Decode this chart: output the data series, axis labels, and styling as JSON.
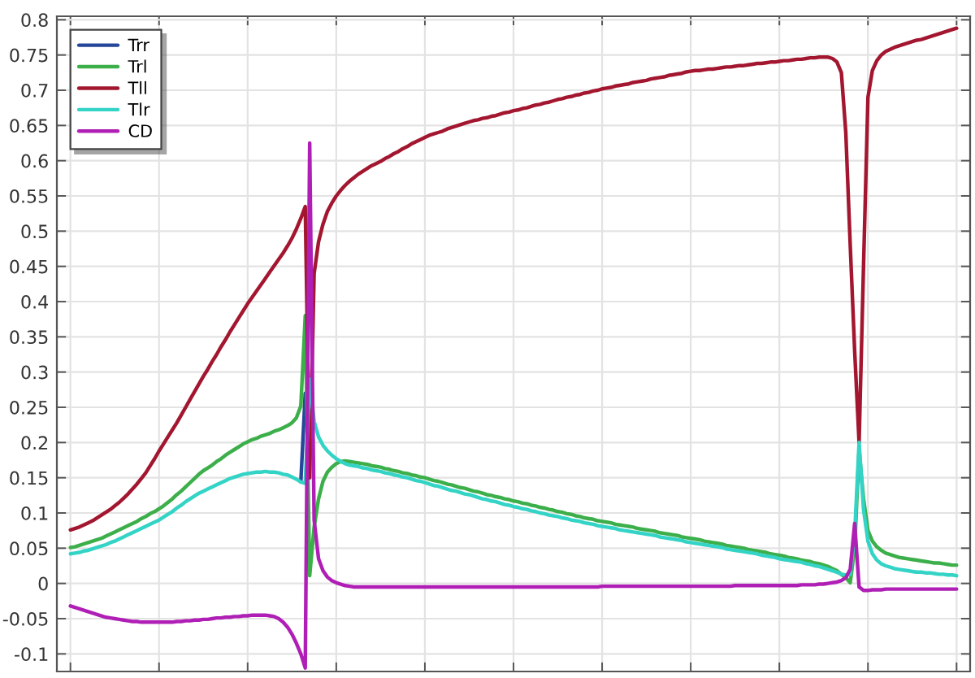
{
  "chart_data": {
    "type": "line",
    "categories": [
      null,
      null,
      null,
      null,
      null,
      null,
      null,
      null,
      null,
      null,
      null,
      null,
      null,
      null,
      null,
      null,
      null,
      null,
      null,
      null,
      null,
      null,
      null,
      null,
      null,
      null,
      null,
      null,
      null,
      null,
      null,
      null,
      null,
      null,
      null,
      null,
      null,
      null,
      null,
      null,
      null,
      null,
      null,
      null,
      null,
      null,
      null,
      null,
      null,
      null,
      null,
      null,
      null,
      null,
      null,
      null,
      null,
      null,
      null,
      null,
      null,
      null,
      null,
      null,
      null,
      null,
      null,
      null,
      null,
      null,
      null,
      null,
      null,
      null,
      null,
      null,
      null,
      null,
      null,
      null,
      null,
      null,
      null,
      null,
      null,
      null,
      null,
      null,
      null,
      null,
      null,
      null,
      null,
      null,
      null,
      null,
      null,
      null,
      null,
      null,
      null,
      null,
      null,
      null,
      null,
      null,
      null,
      null,
      null,
      null,
      null,
      null,
      null,
      null,
      null,
      null,
      null,
      null,
      null,
      null,
      null,
      null,
      null,
      null,
      null,
      null,
      null,
      null,
      null,
      null,
      null,
      null,
      null,
      null,
      null,
      null,
      null,
      null,
      null,
      null,
      null,
      null,
      null,
      null,
      null,
      null,
      null,
      null,
      null,
      null,
      null,
      null,
      null,
      null,
      null,
      null,
      null,
      null,
      null,
      null,
      null,
      null,
      null,
      null,
      null,
      null,
      null,
      null,
      null,
      null,
      null,
      null,
      null,
      null,
      null,
      null,
      null,
      null,
      null,
      null,
      null,
      null,
      null,
      null,
      null,
      null,
      null,
      null,
      null,
      null,
      null,
      null,
      null,
      null,
      null,
      null,
      null,
      null,
      null,
      null,
      null
    ],
    "series": [
      {
        "name": "Trr",
        "color": "#24479a",
        "values": [
          null,
          null,
          null,
          null,
          null,
          null,
          null,
          null,
          null,
          null,
          null,
          null,
          null,
          null,
          null,
          null,
          null,
          null,
          null,
          null,
          null,
          null,
          null,
          null,
          null,
          null,
          null,
          null,
          null,
          null,
          null,
          null,
          null,
          null,
          null,
          null,
          null,
          null,
          null,
          null,
          null,
          null,
          null,
          null,
          null,
          null,
          null,
          null,
          null,
          null,
          null,
          null,
          0.144,
          0.27,
          null,
          null,
          null,
          null,
          null,
          null,
          null,
          null,
          null,
          null,
          null,
          null,
          null,
          null,
          null,
          null,
          null,
          null,
          null,
          null,
          null,
          null,
          null,
          null,
          null,
          null,
          null,
          null,
          null,
          null,
          null,
          null,
          null,
          null,
          null,
          null,
          null,
          null,
          null,
          null,
          null,
          null,
          null,
          null,
          null,
          null,
          null,
          null,
          null,
          null,
          null,
          null,
          null,
          null,
          null,
          null,
          null,
          null,
          null,
          null,
          null,
          null,
          null,
          null,
          null,
          null,
          null,
          null,
          null,
          null,
          null,
          null,
          null,
          null,
          null,
          null,
          null,
          null,
          null,
          null,
          null,
          null,
          null,
          null,
          null,
          null,
          null,
          null,
          null,
          null,
          null,
          null,
          null,
          null,
          null,
          null,
          null,
          null,
          null,
          null,
          null,
          null,
          null,
          null,
          null,
          null,
          null,
          null,
          null,
          null,
          null,
          null,
          null,
          null,
          null,
          null,
          null,
          null,
          null,
          null,
          null,
          null,
          null,
          null,
          null,
          null,
          null,
          null,
          null,
          null,
          null,
          null,
          null,
          null,
          null,
          null,
          null,
          null,
          null,
          null,
          null,
          null,
          null,
          null,
          null,
          null,
          null
        ]
      },
      {
        "name": "Trl",
        "color": "#3caf4a",
        "values": [
          0.051,
          0.052,
          0.054,
          0.056,
          0.058,
          0.06,
          0.062,
          0.064,
          0.067,
          0.07,
          0.073,
          0.076,
          0.079,
          0.082,
          0.085,
          0.088,
          0.092,
          0.095,
          0.099,
          0.102,
          0.106,
          0.11,
          0.115,
          0.12,
          0.126,
          0.131,
          0.137,
          0.143,
          0.149,
          0.155,
          0.16,
          0.164,
          0.168,
          0.173,
          0.177,
          0.182,
          0.186,
          0.19,
          0.194,
          0.198,
          0.201,
          0.204,
          0.206,
          0.209,
          0.211,
          0.213,
          0.216,
          0.218,
          0.221,
          0.224,
          0.228,
          0.235,
          0.252,
          0.38,
          0.011,
          0.08,
          0.12,
          0.145,
          0.158,
          0.165,
          0.17,
          0.173,
          0.174,
          0.173,
          0.172,
          0.171,
          0.17,
          0.169,
          0.167,
          0.166,
          0.165,
          0.163,
          0.162,
          0.16,
          0.159,
          0.157,
          0.156,
          0.154,
          0.153,
          0.151,
          0.15,
          0.148,
          0.146,
          0.145,
          0.143,
          0.141,
          0.14,
          0.138,
          0.136,
          0.135,
          0.133,
          0.131,
          0.13,
          0.128,
          0.126,
          0.125,
          0.123,
          0.122,
          0.12,
          0.119,
          0.117,
          0.116,
          0.114,
          0.113,
          0.111,
          0.11,
          0.108,
          0.107,
          0.105,
          0.104,
          0.102,
          0.101,
          0.099,
          0.098,
          0.096,
          0.095,
          0.093,
          0.092,
          0.091,
          0.089,
          0.088,
          0.087,
          0.086,
          0.084,
          0.083,
          0.082,
          0.081,
          0.08,
          0.078,
          0.077,
          0.076,
          0.075,
          0.074,
          0.072,
          0.071,
          0.07,
          0.069,
          0.068,
          0.066,
          0.065,
          0.064,
          0.063,
          0.062,
          0.06,
          0.059,
          0.058,
          0.057,
          0.056,
          0.054,
          0.053,
          0.052,
          0.051,
          0.05,
          0.048,
          0.047,
          0.046,
          0.045,
          0.044,
          0.042,
          0.041,
          0.04,
          0.039,
          0.037,
          0.036,
          0.035,
          0.033,
          0.032,
          0.031,
          0.029,
          0.028,
          0.026,
          0.024,
          0.021,
          0.018,
          0.013,
          0.008,
          0.001,
          0.05,
          0.19,
          0.12,
          0.075,
          0.06,
          0.052,
          0.047,
          0.043,
          0.041,
          0.039,
          0.037,
          0.036,
          0.035,
          0.034,
          0.033,
          0.032,
          0.031,
          0.03,
          0.029,
          0.029,
          0.028,
          0.027,
          0.026,
          0.026
        ]
      },
      {
        "name": "Tll",
        "color": "#a3162f",
        "values": [
          0.076,
          0.078,
          0.08,
          0.083,
          0.086,
          0.089,
          0.093,
          0.097,
          0.101,
          0.105,
          0.11,
          0.115,
          0.121,
          0.127,
          0.134,
          0.141,
          0.149,
          0.157,
          0.167,
          0.177,
          0.188,
          0.198,
          0.208,
          0.218,
          0.228,
          0.239,
          0.25,
          0.261,
          0.272,
          0.283,
          0.294,
          0.304,
          0.315,
          0.325,
          0.336,
          0.346,
          0.357,
          0.367,
          0.377,
          0.387,
          0.397,
          0.406,
          0.415,
          0.424,
          0.433,
          0.442,
          0.451,
          0.46,
          0.469,
          0.479,
          0.49,
          0.503,
          0.518,
          0.535,
          0.15,
          0.44,
          0.485,
          0.51,
          0.528,
          0.54,
          0.55,
          0.558,
          0.565,
          0.571,
          0.576,
          0.581,
          0.585,
          0.589,
          0.593,
          0.596,
          0.599,
          0.603,
          0.606,
          0.61,
          0.613,
          0.617,
          0.62,
          0.624,
          0.627,
          0.63,
          0.633,
          0.636,
          0.638,
          0.64,
          0.642,
          0.645,
          0.647,
          0.649,
          0.651,
          0.653,
          0.655,
          0.657,
          0.658,
          0.66,
          0.661,
          0.663,
          0.664,
          0.666,
          0.668,
          0.669,
          0.671,
          0.672,
          0.674,
          0.675,
          0.677,
          0.679,
          0.68,
          0.682,
          0.683,
          0.685,
          0.687,
          0.688,
          0.69,
          0.691,
          0.693,
          0.694,
          0.696,
          0.697,
          0.699,
          0.7,
          0.702,
          0.703,
          0.704,
          0.706,
          0.707,
          0.708,
          0.709,
          0.711,
          0.712,
          0.713,
          0.714,
          0.716,
          0.717,
          0.718,
          0.719,
          0.721,
          0.722,
          0.723,
          0.724,
          0.726,
          0.727,
          0.728,
          0.728,
          0.729,
          0.73,
          0.73,
          0.731,
          0.732,
          0.733,
          0.733,
          0.734,
          0.735,
          0.735,
          0.736,
          0.737,
          0.738,
          0.738,
          0.739,
          0.74,
          0.74,
          0.741,
          0.742,
          0.742,
          0.743,
          0.744,
          0.744,
          0.745,
          0.746,
          0.746,
          0.747,
          0.747,
          0.747,
          0.745,
          0.74,
          0.725,
          0.64,
          0.48,
          0.33,
          0.2,
          0.45,
          0.69,
          0.728,
          0.742,
          0.75,
          0.755,
          0.758,
          0.761,
          0.763,
          0.765,
          0.767,
          0.769,
          0.771,
          0.772,
          0.774,
          0.776,
          0.778,
          0.78,
          0.782,
          0.784,
          0.786,
          0.788
        ]
      },
      {
        "name": "Tlr",
        "color": "#33d3c6",
        "values": [
          0.042,
          0.043,
          0.044,
          0.046,
          0.047,
          0.049,
          0.051,
          0.053,
          0.055,
          0.058,
          0.06,
          0.063,
          0.066,
          0.069,
          0.072,
          0.075,
          0.078,
          0.081,
          0.084,
          0.087,
          0.09,
          0.094,
          0.098,
          0.102,
          0.107,
          0.111,
          0.116,
          0.12,
          0.124,
          0.128,
          0.131,
          0.134,
          0.137,
          0.14,
          0.143,
          0.146,
          0.149,
          0.151,
          0.153,
          0.155,
          0.156,
          0.157,
          0.158,
          0.158,
          0.159,
          0.158,
          0.158,
          0.157,
          0.155,
          0.154,
          0.151,
          0.148,
          0.144,
          0.142,
          0.29,
          0.23,
          0.208,
          0.196,
          0.188,
          0.182,
          0.177,
          0.173,
          0.17,
          0.168,
          0.167,
          0.166,
          0.164,
          0.163,
          0.161,
          0.16,
          0.159,
          0.157,
          0.156,
          0.154,
          0.153,
          0.151,
          0.15,
          0.148,
          0.146,
          0.145,
          0.143,
          0.141,
          0.139,
          0.138,
          0.136,
          0.134,
          0.132,
          0.131,
          0.129,
          0.127,
          0.126,
          0.124,
          0.122,
          0.12,
          0.119,
          0.117,
          0.116,
          0.114,
          0.112,
          0.111,
          0.109,
          0.108,
          0.106,
          0.105,
          0.103,
          0.102,
          0.1,
          0.099,
          0.097,
          0.096,
          0.095,
          0.093,
          0.092,
          0.09,
          0.089,
          0.088,
          0.086,
          0.085,
          0.084,
          0.082,
          0.081,
          0.08,
          0.079,
          0.078,
          0.076,
          0.075,
          0.074,
          0.073,
          0.072,
          0.071,
          0.07,
          0.069,
          0.068,
          0.066,
          0.065,
          0.064,
          0.063,
          0.062,
          0.061,
          0.059,
          0.058,
          0.057,
          0.056,
          0.055,
          0.054,
          0.053,
          0.052,
          0.051,
          0.049,
          0.048,
          0.047,
          0.046,
          0.045,
          0.044,
          0.043,
          0.042,
          0.04,
          0.039,
          0.038,
          0.037,
          0.035,
          0.034,
          0.033,
          0.032,
          0.031,
          0.03,
          0.028,
          0.027,
          0.025,
          0.024,
          0.022,
          0.02,
          0.018,
          0.016,
          0.013,
          0.012,
          0.013,
          0.07,
          0.2,
          0.105,
          0.06,
          0.042,
          0.033,
          0.028,
          0.025,
          0.023,
          0.021,
          0.02,
          0.019,
          0.018,
          0.017,
          0.016,
          0.016,
          0.015,
          0.015,
          0.014,
          0.013,
          0.013,
          0.012,
          0.012,
          0.011
        ]
      },
      {
        "name": "CD",
        "color": "#b01fb5",
        "values": [
          -0.032,
          -0.034,
          -0.036,
          -0.038,
          -0.04,
          -0.042,
          -0.044,
          -0.046,
          -0.048,
          -0.049,
          -0.05,
          -0.051,
          -0.052,
          -0.053,
          -0.054,
          -0.054,
          -0.055,
          -0.055,
          -0.055,
          -0.055,
          -0.055,
          -0.055,
          -0.055,
          -0.055,
          -0.054,
          -0.054,
          -0.053,
          -0.053,
          -0.052,
          -0.052,
          -0.051,
          -0.051,
          -0.05,
          -0.049,
          -0.049,
          -0.048,
          -0.048,
          -0.047,
          -0.047,
          -0.046,
          -0.046,
          -0.045,
          -0.045,
          -0.045,
          -0.045,
          -0.046,
          -0.047,
          -0.05,
          -0.055,
          -0.062,
          -0.072,
          -0.085,
          -0.1,
          -0.12,
          0.625,
          0.09,
          0.035,
          0.018,
          0.009,
          0.004,
          0.001,
          -0.001,
          -0.003,
          -0.004,
          -0.005,
          -0.005,
          -0.005,
          -0.005,
          -0.005,
          -0.005,
          -0.005,
          -0.005,
          -0.005,
          -0.005,
          -0.005,
          -0.005,
          -0.005,
          -0.005,
          -0.005,
          -0.005,
          -0.005,
          -0.005,
          -0.005,
          -0.005,
          -0.005,
          -0.005,
          -0.005,
          -0.005,
          -0.005,
          -0.005,
          -0.005,
          -0.005,
          -0.005,
          -0.005,
          -0.005,
          -0.005,
          -0.005,
          -0.005,
          -0.005,
          -0.005,
          -0.005,
          -0.005,
          -0.005,
          -0.005,
          -0.005,
          -0.005,
          -0.005,
          -0.005,
          -0.005,
          -0.005,
          -0.005,
          -0.005,
          -0.005,
          -0.005,
          -0.005,
          -0.005,
          -0.005,
          -0.005,
          -0.005,
          -0.005,
          -0.004,
          -0.004,
          -0.004,
          -0.004,
          -0.004,
          -0.004,
          -0.004,
          -0.004,
          -0.004,
          -0.004,
          -0.004,
          -0.004,
          -0.004,
          -0.004,
          -0.004,
          -0.004,
          -0.004,
          -0.004,
          -0.004,
          -0.004,
          -0.004,
          -0.004,
          -0.004,
          -0.004,
          -0.004,
          -0.004,
          -0.004,
          -0.004,
          -0.004,
          -0.004,
          -0.003,
          -0.003,
          -0.003,
          -0.003,
          -0.003,
          -0.003,
          -0.003,
          -0.003,
          -0.003,
          -0.003,
          -0.003,
          -0.003,
          -0.003,
          -0.003,
          -0.003,
          -0.002,
          -0.002,
          -0.002,
          -0.002,
          -0.001,
          -0.001,
          0,
          0.001,
          0.002,
          0.004,
          0.008,
          0.02,
          0.085,
          -0.005,
          -0.01,
          -0.01,
          -0.009,
          -0.009,
          -0.009,
          -0.008,
          -0.008,
          -0.008,
          -0.008,
          -0.008,
          -0.008,
          -0.008,
          -0.008,
          -0.008,
          -0.008,
          -0.008,
          -0.008,
          -0.008,
          -0.008,
          -0.008,
          -0.008,
          -0.008
        ]
      }
    ],
    "ylim": [
      -0.125,
      0.805
    ],
    "yticks": [
      -0.1,
      -0.05,
      0,
      0.05,
      0.1,
      0.15,
      0.2,
      0.25,
      0.3,
      0.35,
      0.4,
      0.45,
      0.5,
      0.55,
      0.6,
      0.65,
      0.7,
      0.75,
      0.8
    ],
    "tick_labels": "y",
    "grid": true,
    "legend": "top left"
  }
}
